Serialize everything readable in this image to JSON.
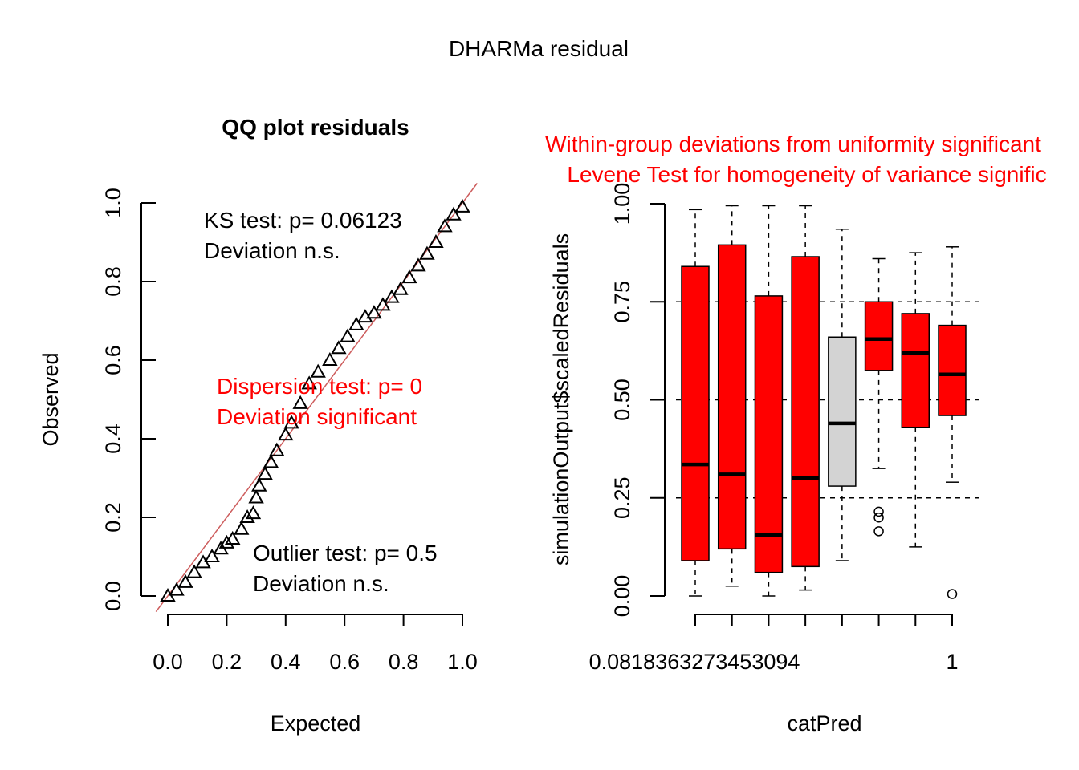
{
  "figure_title": "DHARMa residual",
  "colors": {
    "flag": "#ff0000",
    "ok_box": "#d3d3d3",
    "qq_line": "#cd5c5c",
    "points": "#000000"
  },
  "chart_data": [
    {
      "type": "scatter",
      "title": "QQ plot residuals",
      "xlabel": "Expected",
      "ylabel": "Observed",
      "xlim": [
        0,
        1
      ],
      "ylim": [
        0,
        1
      ],
      "xticks": [
        "0.0",
        "0.2",
        "0.4",
        "0.6",
        "0.8",
        "1.0"
      ],
      "yticks": [
        "0.0",
        "0.2",
        "0.4",
        "0.6",
        "0.8",
        "1.0"
      ],
      "marker": "open-triangle",
      "reference_line": "y = x",
      "points": [
        [
          0.0,
          0.0
        ],
        [
          0.03,
          0.015
        ],
        [
          0.06,
          0.035
        ],
        [
          0.09,
          0.06
        ],
        [
          0.12,
          0.085
        ],
        [
          0.15,
          0.1
        ],
        [
          0.18,
          0.12
        ],
        [
          0.2,
          0.135
        ],
        [
          0.22,
          0.145
        ],
        [
          0.25,
          0.17
        ],
        [
          0.27,
          0.2
        ],
        [
          0.29,
          0.21
        ],
        [
          0.3,
          0.25
        ],
        [
          0.31,
          0.28
        ],
        [
          0.33,
          0.31
        ],
        [
          0.35,
          0.34
        ],
        [
          0.37,
          0.37
        ],
        [
          0.4,
          0.41
        ],
        [
          0.42,
          0.44
        ],
        [
          0.45,
          0.49
        ],
        [
          0.48,
          0.54
        ],
        [
          0.51,
          0.57
        ],
        [
          0.55,
          0.6
        ],
        [
          0.58,
          0.63
        ],
        [
          0.61,
          0.66
        ],
        [
          0.64,
          0.69
        ],
        [
          0.67,
          0.71
        ],
        [
          0.7,
          0.72
        ],
        [
          0.73,
          0.74
        ],
        [
          0.76,
          0.76
        ],
        [
          0.79,
          0.78
        ],
        [
          0.82,
          0.81
        ],
        [
          0.85,
          0.84
        ],
        [
          0.88,
          0.87
        ],
        [
          0.91,
          0.9
        ],
        [
          0.94,
          0.94
        ],
        [
          0.97,
          0.97
        ],
        [
          1.0,
          0.99
        ]
      ],
      "annotations": [
        {
          "lines": [
            "KS test: p= 0.06123",
            "Deviation  n.s."
          ],
          "color": "#000000"
        },
        {
          "lines": [
            "Dispersion test: p= 0",
            "Deviation  significant"
          ],
          "color": "#ff0000"
        },
        {
          "lines": [
            "Outlier test: p= 0.5",
            "Deviation  n.s."
          ],
          "color": "#000000"
        }
      ]
    },
    {
      "type": "boxplot",
      "title_lines": [
        "Within-group deviations from uniformity significant",
        "Levene Test for homogeneity of variance signific"
      ],
      "xlabel": "catPred",
      "ylabel": "simulationOutput$scaledResiduals",
      "ylim": [
        0,
        1
      ],
      "yticks": [
        "0.00",
        "0.25",
        "0.50",
        "0.75",
        "1.00"
      ],
      "xtick_labels": [
        "0.0818363273453094",
        "1"
      ],
      "reference_lines": [
        0.25,
        0.5,
        0.75
      ],
      "groups": [
        {
          "whisker_low": 0.0,
          "q1": 0.09,
          "median": 0.335,
          "q3": 0.84,
          "whisker_high": 0.985,
          "flagged": true,
          "outliers": []
        },
        {
          "whisker_low": 0.025,
          "q1": 0.12,
          "median": 0.31,
          "q3": 0.895,
          "whisker_high": 0.995,
          "flagged": true,
          "outliers": []
        },
        {
          "whisker_low": 0.0,
          "q1": 0.06,
          "median": 0.155,
          "q3": 0.765,
          "whisker_high": 0.995,
          "flagged": true,
          "outliers": []
        },
        {
          "whisker_low": 0.015,
          "q1": 0.075,
          "median": 0.3,
          "q3": 0.865,
          "whisker_high": 0.995,
          "flagged": true,
          "outliers": []
        },
        {
          "whisker_low": 0.09,
          "q1": 0.28,
          "median": 0.44,
          "q3": 0.66,
          "whisker_high": 0.935,
          "flagged": false,
          "outliers": []
        },
        {
          "whisker_low": 0.325,
          "q1": 0.575,
          "median": 0.655,
          "q3": 0.75,
          "whisker_high": 0.86,
          "flagged": true,
          "outliers": [
            0.215,
            0.2,
            0.165
          ]
        },
        {
          "whisker_low": 0.125,
          "q1": 0.43,
          "median": 0.62,
          "q3": 0.72,
          "whisker_high": 0.875,
          "flagged": true,
          "outliers": []
        },
        {
          "whisker_low": 0.29,
          "q1": 0.46,
          "median": 0.565,
          "q3": 0.69,
          "whisker_high": 0.89,
          "flagged": true,
          "outliers": [
            0.005
          ]
        }
      ]
    }
  ]
}
